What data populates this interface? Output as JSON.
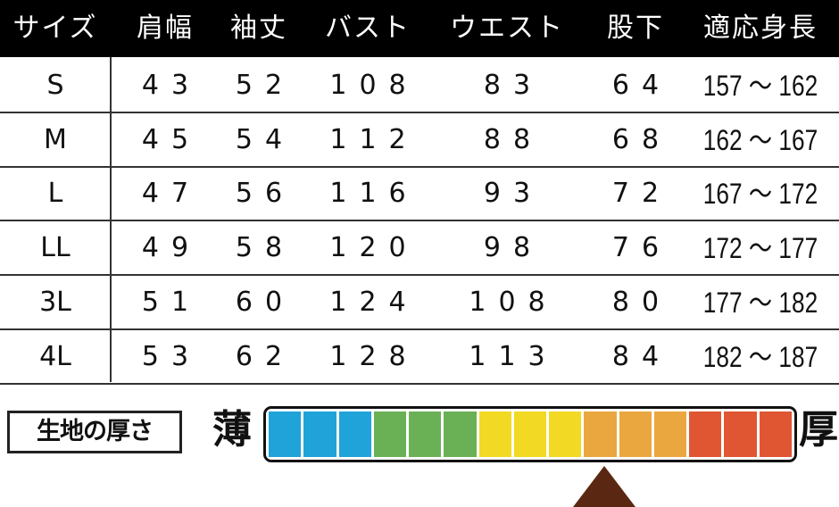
{
  "headers": [
    "サイズ",
    "肩幅",
    "袖丈",
    "バスト",
    "ウエスト",
    "股下",
    "適応身長"
  ],
  "rows": [
    [
      "S",
      "43",
      "52",
      "108",
      "83",
      "64",
      "157 ～ 162"
    ],
    [
      "M",
      "45",
      "54",
      "112",
      "88",
      "68",
      "162 ～ 167"
    ],
    [
      "L",
      "47",
      "56",
      "116",
      "93",
      "72",
      "167 ～ 172"
    ],
    [
      "LL",
      "49",
      "58",
      "120",
      "98",
      "76",
      "172 ～ 177"
    ],
    [
      "3L",
      "51",
      "60",
      "124",
      "108",
      "80",
      "177 ～ 182"
    ],
    [
      "4L",
      "53",
      "62",
      "128",
      "113",
      "84",
      "182 ～ 187"
    ]
  ],
  "thickness": {
    "label": "生地の厚さ",
    "thin_label": "薄",
    "thick_label": "厚",
    "segments": 15,
    "level": 10,
    "colors": [
      "#1fa3d9",
      "#1fa3d9",
      "#1fa3d9",
      "#6ab155",
      "#6ab155",
      "#6ab155",
      "#f2d923",
      "#f2d923",
      "#f2d923",
      "#eba73f",
      "#eba73f",
      "#eba73f",
      "#e05633",
      "#e05633",
      "#e05633"
    ],
    "indicator_color": "#5a2812"
  }
}
